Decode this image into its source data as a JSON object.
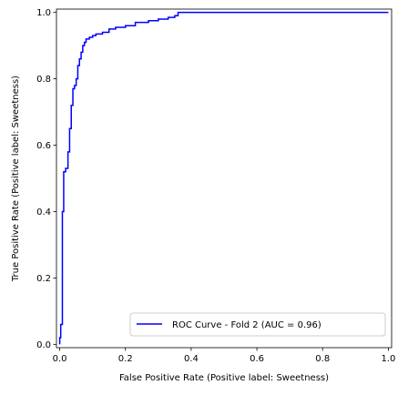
{
  "chart_data": {
    "type": "line",
    "title": "",
    "xlabel": "False Positive Rate (Positive label: Sweetness)",
    "ylabel": "True Positive Rate (Positive label: Sweetness)",
    "xlim": [
      -0.01,
      1.01
    ],
    "ylim": [
      -0.01,
      1.01
    ],
    "xticks": [
      0.0,
      0.2,
      0.4,
      0.6,
      0.8,
      1.0
    ],
    "yticks": [
      0.0,
      0.2,
      0.4,
      0.6,
      0.8,
      1.0
    ],
    "xtick_labels": [
      "0.0",
      "0.2",
      "0.4",
      "0.6",
      "0.8",
      "1.0"
    ],
    "ytick_labels": [
      "0.0",
      "0.2",
      "0.4",
      "0.6",
      "0.8",
      "1.0"
    ],
    "grid": false,
    "legend_position": "lower-right",
    "series": [
      {
        "name": "ROC Curve - Fold 2 (AUC = 0.96)",
        "color": "#0000ff",
        "x": [
          0.0,
          0.0,
          0.003,
          0.003,
          0.008,
          0.008,
          0.012,
          0.012,
          0.018,
          0.018,
          0.025,
          0.025,
          0.03,
          0.03,
          0.035,
          0.035,
          0.04,
          0.04,
          0.045,
          0.045,
          0.05,
          0.05,
          0.055,
          0.055,
          0.06,
          0.06,
          0.065,
          0.065,
          0.07,
          0.07,
          0.075,
          0.075,
          0.08,
          0.08,
          0.09,
          0.09,
          0.1,
          0.1,
          0.11,
          0.11,
          0.13,
          0.13,
          0.15,
          0.15,
          0.17,
          0.17,
          0.2,
          0.2,
          0.23,
          0.23,
          0.27,
          0.27,
          0.3,
          0.3,
          0.33,
          0.33,
          0.35,
          0.35,
          0.36,
          0.36,
          1.0
        ],
        "y": [
          0.0,
          0.02,
          0.02,
          0.06,
          0.06,
          0.4,
          0.4,
          0.52,
          0.52,
          0.53,
          0.53,
          0.58,
          0.58,
          0.65,
          0.65,
          0.72,
          0.72,
          0.77,
          0.77,
          0.78,
          0.78,
          0.8,
          0.8,
          0.84,
          0.84,
          0.86,
          0.86,
          0.88,
          0.88,
          0.9,
          0.9,
          0.91,
          0.91,
          0.92,
          0.92,
          0.925,
          0.925,
          0.93,
          0.93,
          0.935,
          0.935,
          0.94,
          0.94,
          0.95,
          0.95,
          0.955,
          0.955,
          0.96,
          0.96,
          0.97,
          0.97,
          0.975,
          0.975,
          0.98,
          0.98,
          0.985,
          0.985,
          0.99,
          0.99,
          1.0,
          1.0
        ]
      }
    ]
  }
}
